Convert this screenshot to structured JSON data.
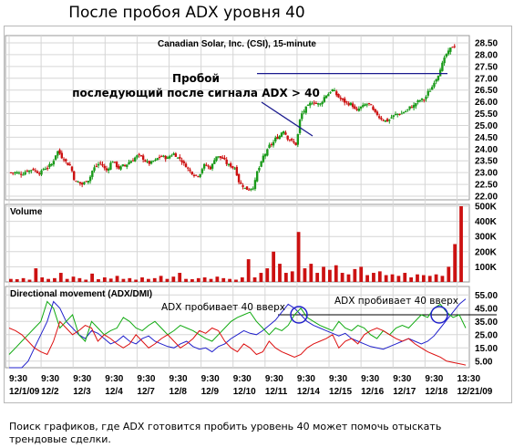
{
  "heading": "После пробоя ADX уровня 40",
  "caption": "Поиск графиков, где ADX готовится пробить уровень 40 может помочь отыскать трендовые сделки.",
  "colors": {
    "up_candle": "#1a9a1a",
    "down_candle": "#cc1111",
    "volume": "#cc1111",
    "adx": "#2222cc",
    "plus_di": "#11aa11",
    "minus_di": "#dd1111",
    "annotation_line": "#1b1b8f",
    "grid": "#d6d6d6"
  },
  "chart_data": [
    {
      "type": "candlestick",
      "title": "Canadian Solar, Inc. (CSI), 15-minute",
      "y_ticks": [
        "28.50",
        "28.00",
        "27.50",
        "27.00",
        "26.50",
        "26.00",
        "25.50",
        "25.00",
        "24.50",
        "24.00",
        "23.50",
        "23.00",
        "22.50",
        "22.00"
      ],
      "ylim": [
        22.0,
        28.5
      ],
      "x_tick_times": [
        "9:30",
        "9:30",
        "9:30",
        "9:30",
        "9:30",
        "9:30",
        "9:30",
        "9:30",
        "9:30",
        "9:30",
        "9:30",
        "9:30",
        "9:30",
        "9:30",
        "13:30"
      ],
      "x_tick_dates": [
        "12/1/09",
        "12/2",
        "12/3",
        "12/4",
        "12/7",
        "12/8",
        "12/9",
        "12/10",
        "12/11",
        "12/14",
        "12/15",
        "12/16",
        "12/17",
        "12/18",
        "12/21/09"
      ],
      "close_path": [
        23.0,
        22.95,
        23.1,
        23.15,
        23.0,
        23.2,
        23.35,
        23.9,
        23.6,
        23.3,
        22.6,
        22.5,
        22.7,
        23.2,
        23.4,
        23.1,
        23.5,
        23.2,
        23.3,
        23.5,
        23.7,
        23.6,
        23.4,
        23.5,
        23.7,
        23.6,
        23.8,
        23.6,
        23.3,
        23.0,
        22.9,
        23.3,
        23.2,
        23.7,
        23.6,
        23.3,
        23.2,
        22.5,
        22.3,
        22.4,
        23.2,
        23.8,
        24.2,
        24.5,
        24.8,
        24.4,
        24.2,
        25.5,
        25.8,
        26.0,
        25.9,
        26.3,
        26.5,
        26.2,
        26.0,
        25.9,
        25.6,
        25.8,
        25.9,
        25.5,
        25.3,
        25.2,
        25.4,
        25.5,
        25.6,
        25.8,
        26.0,
        26.1,
        26.5,
        27.0,
        27.6,
        28.1,
        28.4
      ],
      "annotation": "Пробой последующий после сигнала ADX > 40",
      "breakout_level": 27.2
    },
    {
      "type": "bar",
      "title": "Volume",
      "y_ticks": [
        "500K",
        "400K",
        "300K",
        "200K",
        "100K"
      ],
      "ylim": [
        0,
        500000
      ],
      "values": [
        20,
        18,
        25,
        15,
        90,
        30,
        20,
        25,
        60,
        20,
        35,
        25,
        15,
        55,
        18,
        30,
        22,
        40,
        20,
        25,
        15,
        30,
        20,
        25,
        40,
        20,
        35,
        60,
        20,
        18,
        25,
        30,
        20,
        35,
        25,
        20,
        15,
        30,
        150,
        30,
        60,
        90,
        200,
        120,
        60,
        70,
        330,
        90,
        120,
        60,
        100,
        80,
        110,
        60,
        50,
        85,
        100,
        45,
        60,
        70,
        45,
        50,
        40,
        60,
        30,
        50,
        45,
        40,
        50,
        40,
        100,
        250,
        500
      ]
    },
    {
      "type": "line",
      "title": "Directional movement (ADX/DMI)",
      "y_ticks": [
        "55.00",
        "45.00",
        "35.00",
        "25.00",
        "15.00",
        "5.00"
      ],
      "ylim": [
        0,
        60
      ],
      "threshold": 40,
      "annotations": [
        "ADX пробивает 40 вверх",
        "ADX пробивает 40 вверх"
      ],
      "series": [
        {
          "values": [
            0,
            0,
            0,
            5,
            15,
            25,
            35,
            50,
            45,
            35,
            30,
            25,
            22,
            28,
            26,
            22,
            18,
            20,
            24,
            20,
            18,
            22,
            24,
            20,
            18,
            16,
            15,
            18,
            20,
            16,
            14,
            15,
            12,
            16,
            18,
            22,
            25,
            28,
            26,
            25,
            28,
            32,
            36,
            42,
            48,
            45,
            40,
            35,
            32,
            30,
            28,
            26,
            24,
            26,
            22,
            20,
            18,
            16,
            15,
            14,
            16,
            18,
            20,
            22,
            20,
            18,
            20,
            24,
            30,
            36,
            42,
            48,
            52
          ]
        },
        {
          "values": [
            10,
            15,
            20,
            25,
            30,
            35,
            50,
            45,
            30,
            35,
            40,
            25,
            20,
            35,
            30,
            25,
            28,
            30,
            38,
            35,
            30,
            28,
            32,
            35,
            30,
            25,
            28,
            32,
            30,
            28,
            25,
            22,
            20,
            25,
            30,
            35,
            38,
            40,
            42,
            35,
            30,
            25,
            30,
            28,
            32,
            40,
            45,
            38,
            35,
            32,
            30,
            28,
            35,
            30,
            28,
            32,
            30,
            25,
            22,
            28,
            25,
            30,
            32,
            30,
            35,
            40,
            38,
            45,
            48,
            42,
            38,
            40,
            30
          ]
        },
        {
          "values": [
            30,
            28,
            25,
            20,
            15,
            12,
            10,
            20,
            35,
            30,
            25,
            28,
            32,
            30,
            20,
            25,
            22,
            18,
            15,
            18,
            25,
            20,
            15,
            18,
            22,
            25,
            20,
            15,
            18,
            22,
            28,
            26,
            30,
            28,
            20,
            15,
            12,
            18,
            15,
            10,
            12,
            20,
            15,
            12,
            10,
            8,
            10,
            15,
            18,
            20,
            22,
            25,
            15,
            20,
            22,
            18,
            25,
            28,
            30,
            28,
            25,
            22,
            20,
            22,
            18,
            15,
            12,
            10,
            8,
            5,
            4,
            3,
            2
          ]
        }
      ]
    }
  ]
}
